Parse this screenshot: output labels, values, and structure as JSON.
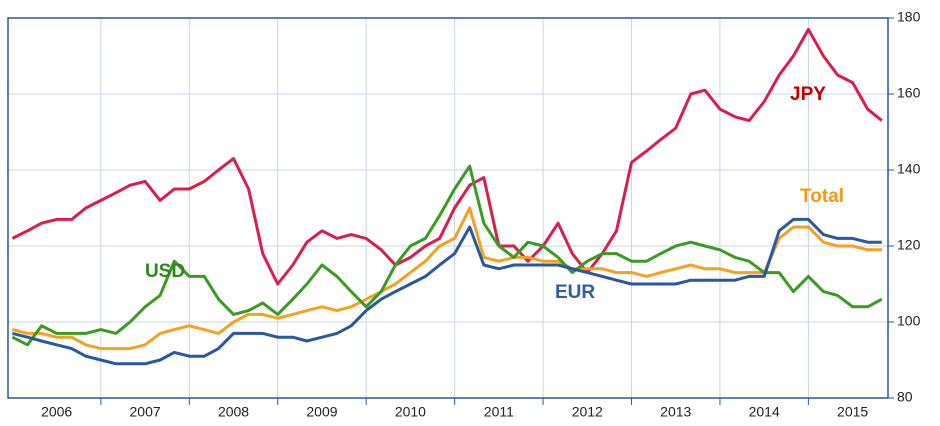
{
  "chart_data": {
    "type": "line",
    "x": [
      2006,
      2006.17,
      2006.33,
      2006.5,
      2006.67,
      2006.83,
      2007,
      2007.17,
      2007.33,
      2007.5,
      2007.67,
      2007.83,
      2008,
      2008.17,
      2008.33,
      2008.5,
      2008.67,
      2008.83,
      2009,
      2009.17,
      2009.33,
      2009.5,
      2009.67,
      2009.83,
      2010,
      2010.17,
      2010.33,
      2010.5,
      2010.67,
      2010.83,
      2011,
      2011.17,
      2011.33,
      2011.5,
      2011.67,
      2011.83,
      2012,
      2012.17,
      2012.33,
      2012.5,
      2012.67,
      2012.83,
      2013,
      2013.17,
      2013.33,
      2013.5,
      2013.67,
      2013.83,
      2014,
      2014.17,
      2014.33,
      2014.5,
      2014.67,
      2014.83,
      2015,
      2015.17,
      2015.33,
      2015.5,
      2015.67,
      2015.83
    ],
    "series": [
      {
        "name": "JPY",
        "color": "#d81e4c",
        "label_color": "#c00000",
        "values": [
          122,
          124,
          126,
          127,
          127,
          130,
          132,
          134,
          136,
          137,
          132,
          135,
          135,
          137,
          140,
          143,
          135,
          118,
          110,
          115,
          121,
          124,
          122,
          123,
          122,
          119,
          115,
          117,
          120,
          122,
          130,
          136,
          138,
          120,
          120,
          116,
          120,
          126,
          118,
          113,
          118,
          124,
          142,
          145,
          148,
          151,
          160,
          161,
          156,
          154,
          153,
          158,
          165,
          170,
          177,
          170,
          165,
          163,
          156,
          153
        ]
      },
      {
        "name": "Total",
        "color": "#f5a020",
        "label_color": "#f39a12",
        "values": [
          98,
          97,
          97,
          96,
          96,
          94,
          93,
          93,
          93,
          94,
          97,
          98,
          99,
          98,
          97,
          100,
          102,
          102,
          101,
          102,
          103,
          104,
          103,
          104,
          106,
          108,
          110,
          113,
          116,
          120,
          122,
          130,
          117,
          116,
          117,
          117,
          116,
          116,
          114,
          114,
          114,
          113,
          113,
          112,
          113,
          114,
          115,
          114,
          114,
          113,
          113,
          113,
          122,
          125,
          125,
          121,
          120,
          120,
          119,
          119
        ]
      },
      {
        "name": "USD",
        "color": "#3a9a22",
        "label_color": "#2a8a14",
        "values": [
          96,
          94,
          99,
          97,
          97,
          97,
          98,
          97,
          100,
          104,
          107,
          116,
          112,
          112,
          106,
          102,
          103,
          105,
          102,
          106,
          110,
          115,
          112,
          108,
          104,
          108,
          115,
          120,
          122,
          128,
          135,
          141,
          126,
          120,
          117,
          121,
          120,
          117,
          113,
          116,
          118,
          118,
          116,
          116,
          118,
          120,
          121,
          120,
          119,
          117,
          116,
          113,
          113,
          108,
          112,
          108,
          107,
          104,
          104,
          106
        ]
      },
      {
        "name": "EUR",
        "color": "#2a57a0",
        "label_color": "#2e5e9e",
        "values": [
          97,
          96,
          95,
          94,
          93,
          91,
          90,
          89,
          89,
          89,
          90,
          92,
          91,
          91,
          93,
          97,
          97,
          97,
          96,
          96,
          95,
          96,
          97,
          99,
          103,
          106,
          108,
          110,
          112,
          115,
          118,
          125,
          115,
          114,
          115,
          115,
          115,
          115,
          114,
          113,
          112,
          111,
          110,
          110,
          110,
          110,
          111,
          111,
          111,
          111,
          112,
          112,
          124,
          127,
          127,
          123,
          122,
          122,
          121,
          121
        ]
      }
    ],
    "xlim": [
      2005.95,
      2015.9
    ],
    "xgrid": [
      2007,
      2008,
      2009,
      2010,
      2011,
      2012,
      2013,
      2014,
      2015
    ],
    "xticks": [
      {
        "value": 2006.5,
        "label": "2006"
      },
      {
        "value": 2007.5,
        "label": "2007"
      },
      {
        "value": 2008.5,
        "label": "2008"
      },
      {
        "value": 2009.5,
        "label": "2009"
      },
      {
        "value": 2010.5,
        "label": "2010"
      },
      {
        "value": 2011.5,
        "label": "2011"
      },
      {
        "value": 2012.5,
        "label": "2012"
      },
      {
        "value": 2013.5,
        "label": "2013"
      },
      {
        "value": 2014.5,
        "label": "2014"
      },
      {
        "value": 2015.5,
        "label": "2015"
      }
    ],
    "ylim": [
      80,
      180
    ],
    "yticks": [
      80,
      100,
      120,
      140,
      160,
      180
    ],
    "grid": true
  }
}
